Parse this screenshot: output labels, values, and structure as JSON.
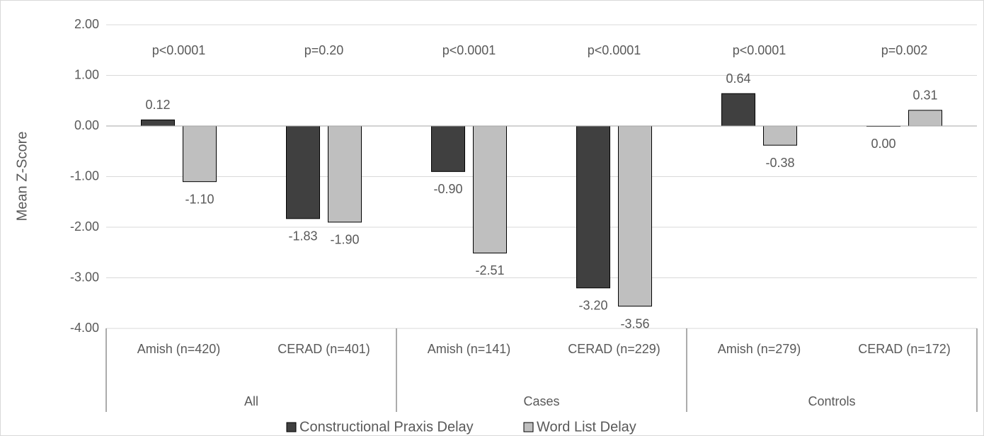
{
  "chart_data": {
    "type": "bar",
    "y_label": "Mean Z-Score",
    "categories": [
      "Amish (n=420)",
      "CERAD (n=401)",
      "Amish (n=141)",
      "CERAD (n=229)",
      "Amish (n=279)",
      "CERAD (n=172)"
    ],
    "groups": [
      "All",
      "Cases",
      "Controls"
    ],
    "annotations": [
      "p<0.0001",
      "p=0.20",
      "p<0.0001",
      "p<0.0001",
      "p<0.0001",
      "p=0.002"
    ],
    "series": [
      {
        "name": "Constructional Praxis Delay",
        "color": "#404040",
        "values": [
          0.12,
          -1.83,
          -0.9,
          -3.2,
          0.64,
          0.0
        ],
        "value_labels": [
          "0.12",
          "-1.83",
          "-0.90",
          "-3.20",
          "0.64",
          "0.00"
        ]
      },
      {
        "name": "Word List Delay",
        "color": "#bfbfbf",
        "values": [
          -1.1,
          -1.9,
          -2.51,
          -3.56,
          -0.38,
          0.31
        ],
        "value_labels": [
          "-1.10",
          "-1.90",
          "-2.51",
          "-3.56",
          "-0.38",
          "0.31"
        ]
      }
    ],
    "ylim": [
      -4,
      2
    ],
    "yticks": [
      {
        "value": -4,
        "label": "-4.00"
      },
      {
        "value": -3,
        "label": "-3.00"
      },
      {
        "value": -2,
        "label": "-2.00"
      },
      {
        "value": -1,
        "label": "-1.00"
      },
      {
        "value": 0,
        "label": "0.00"
      },
      {
        "value": 1,
        "label": "1.00"
      },
      {
        "value": 2,
        "label": "2.00"
      }
    ],
    "grid": true,
    "legend": "bottom"
  }
}
